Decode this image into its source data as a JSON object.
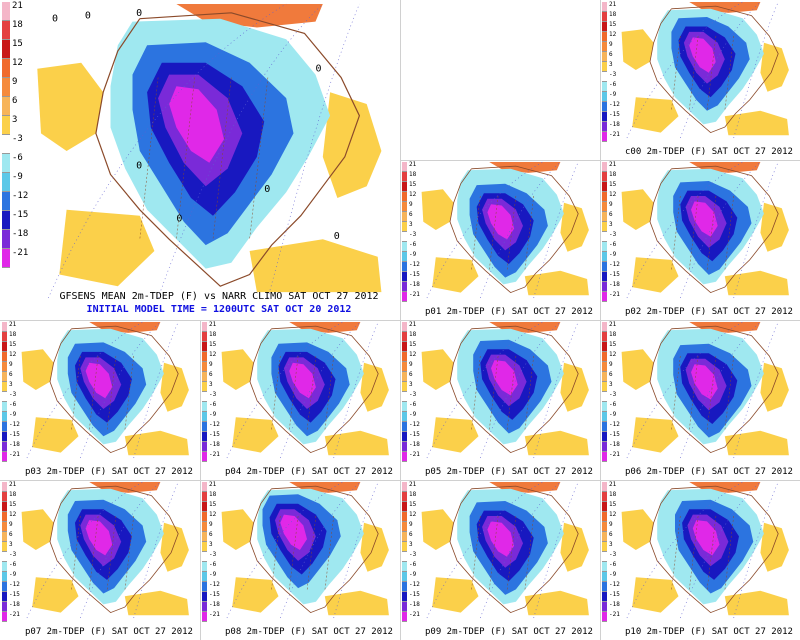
{
  "colorbar": {
    "labels": [
      "21",
      "18",
      "15",
      "12",
      "9",
      "6",
      "3",
      "-3",
      "-6",
      "-9",
      "-12",
      "-15",
      "-18",
      "-21"
    ],
    "colors": [
      "#f4b6c8",
      "#e44040",
      "#c81818",
      "#f06a2c",
      "#f58a3c",
      "#f7b45a",
      "#fbd04a",
      "#ffffff",
      "#9fe8f0",
      "#5cc8e8",
      "#2c74e0",
      "#1818c0",
      "#7a2ad8",
      "#e028e8"
    ]
  },
  "main": {
    "title": "GFSENS MEAN 2m-TDEP (F) vs NARR CLIMO SAT OCT 27 2012",
    "subtitle": "INITIAL MODEL TIME = 1200UTC SAT OCT 20 2012",
    "contour_labels": [
      "0",
      "0",
      "0",
      "0",
      "0",
      "0",
      "0",
      "0"
    ]
  },
  "members": [
    {
      "id": "c00",
      "caption": "c00 2m-TDEP (F) SAT OCT 27 2012"
    },
    {
      "id": "p01",
      "caption": "p01 2m-TDEP (F) SAT OCT 27 2012"
    },
    {
      "id": "p02",
      "caption": "p02 2m-TDEP (F) SAT OCT 27 2012"
    },
    {
      "id": "p03",
      "caption": "p03 2m-TDEP (F) SAT OCT 27 2012"
    },
    {
      "id": "p04",
      "caption": "p04 2m-TDEP (F) SAT OCT 27 2012"
    },
    {
      "id": "p05",
      "caption": "p05 2m-TDEP (F) SAT OCT 27 2012"
    },
    {
      "id": "p06",
      "caption": "p06 2m-TDEP (F) SAT OCT 27 2012"
    },
    {
      "id": "p07",
      "caption": "p07 2m-TDEP (F) SAT OCT 27 2012"
    },
    {
      "id": "p08",
      "caption": "p08 2m-TDEP (F) SAT OCT 27 2012"
    },
    {
      "id": "p09",
      "caption": "p09 2m-TDEP (F) SAT OCT 27 2012"
    },
    {
      "id": "p10",
      "caption": "p10 2m-TDEP (F) SAT OCT 27 2012"
    }
  ]
}
